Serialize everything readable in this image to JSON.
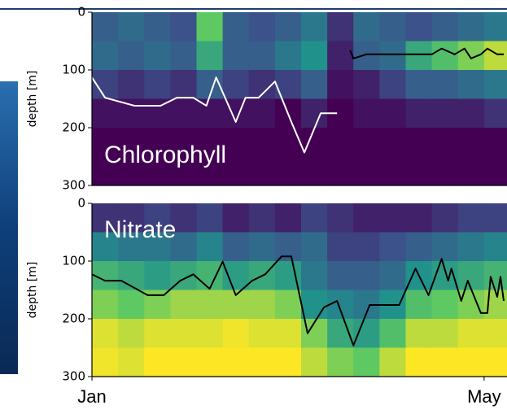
{
  "chart_data": [
    {
      "type": "heatmap",
      "title": "Chlorophyll",
      "ylabel": "depth [m]",
      "xlim": [
        0,
        127
      ],
      "ylim": [
        0,
        300
      ],
      "y_inverted": true,
      "yticks": [
        0,
        100,
        200,
        300
      ],
      "x_bins": [
        0,
        8,
        16,
        24,
        32,
        40,
        48,
        56,
        64,
        72,
        80,
        88,
        96,
        104,
        112,
        120,
        127
      ],
      "y_bins": [
        0,
        50,
        100,
        150,
        200,
        250,
        300
      ],
      "z": [
        [
          0.3,
          0.35,
          0.2,
          0.05,
          0,
          0
        ],
        [
          0.35,
          0.3,
          0.15,
          0.05,
          0,
          0
        ],
        [
          0.3,
          0.35,
          0.2,
          0.05,
          0,
          0
        ],
        [
          0.25,
          0.3,
          0.15,
          0.05,
          0,
          0
        ],
        [
          0.75,
          0.6,
          0.3,
          0.05,
          0,
          0
        ],
        [
          0.3,
          0.3,
          0.2,
          0.05,
          0,
          0
        ],
        [
          0.25,
          0.3,
          0.15,
          0.05,
          0,
          0
        ],
        [
          0.3,
          0.4,
          0.2,
          0,
          0,
          0
        ],
        [
          0.4,
          0.5,
          0.3,
          0.1,
          0,
          0
        ],
        [
          0.15,
          0.1,
          0.05,
          0,
          0,
          0
        ],
        [
          0.35,
          0.3,
          0.1,
          0.05,
          0,
          0
        ],
        [
          0.3,
          0.35,
          0.2,
          0.05,
          0,
          0
        ],
        [
          0.25,
          0.6,
          0.3,
          0.1,
          0,
          0
        ],
        [
          0.3,
          0.7,
          0.3,
          0.1,
          0,
          0
        ],
        [
          0.35,
          0.8,
          0.35,
          0.1,
          0,
          0
        ],
        [
          0.4,
          0.9,
          0.4,
          0.15,
          0,
          0
        ]
      ],
      "lines": [
        {
          "color": "#ffffff",
          "x": [
            0,
            4,
            13,
            21,
            26,
            31,
            35,
            38,
            44,
            47,
            51,
            56,
            61,
            65,
            70,
            75
          ],
          "values": [
            113,
            148,
            162,
            162,
            148,
            148,
            162,
            113,
            190,
            148,
            148,
            120,
            190,
            243,
            175,
            175
          ]
        },
        {
          "color": "#000000",
          "x": [
            79,
            80,
            84,
            94,
            104,
            107,
            111,
            114,
            116,
            119,
            121,
            124,
            126
          ],
          "values": [
            66,
            80,
            73,
            73,
            73,
            63,
            73,
            63,
            80,
            73,
            63,
            73,
            73
          ]
        }
      ]
    },
    {
      "type": "heatmap",
      "title": "Nitrate",
      "ylabel": "depth [m]",
      "xlim": [
        0,
        127
      ],
      "ylim": [
        0,
        300
      ],
      "y_inverted": true,
      "yticks": [
        0,
        100,
        200,
        300
      ],
      "xticks": [
        {
          "value": 0,
          "label": "Jan"
        },
        {
          "value": 120,
          "label": "May"
        }
      ],
      "x_bins": [
        0,
        8,
        16,
        24,
        32,
        40,
        48,
        56,
        64,
        72,
        80,
        88,
        96,
        104,
        112,
        120,
        127
      ],
      "y_bins": [
        0,
        50,
        100,
        150,
        200,
        250,
        300
      ],
      "z": [
        [
          0.15,
          0.45,
          0.65,
          0.8,
          0.95,
          0.98
        ],
        [
          0.15,
          0.4,
          0.6,
          0.75,
          0.9,
          0.95
        ],
        [
          0.2,
          0.4,
          0.55,
          0.8,
          0.95,
          1
        ],
        [
          0.15,
          0.35,
          0.6,
          0.85,
          0.95,
          1
        ],
        [
          0.2,
          0.45,
          0.65,
          0.85,
          0.95,
          1
        ],
        [
          0.1,
          0.3,
          0.55,
          0.85,
          0.98,
          1
        ],
        [
          0.15,
          0.35,
          0.6,
          0.85,
          0.95,
          1
        ],
        [
          0.1,
          0.3,
          0.55,
          0.8,
          0.95,
          1
        ],
        [
          0.2,
          0.35,
          0.4,
          0.5,
          0.8,
          0.9
        ],
        [
          0.15,
          0.2,
          0.3,
          0.45,
          0.6,
          0.8
        ],
        [
          0.1,
          0.2,
          0.3,
          0.4,
          0.55,
          0.75
        ],
        [
          0.1,
          0.25,
          0.35,
          0.5,
          0.7,
          0.9
        ],
        [
          0.1,
          0.3,
          0.5,
          0.7,
          0.9,
          1
        ],
        [
          0.15,
          0.35,
          0.55,
          0.75,
          0.9,
          1
        ],
        [
          0.2,
          0.4,
          0.6,
          0.8,
          0.95,
          1
        ],
        [
          0.2,
          0.45,
          0.65,
          0.85,
          0.95,
          1
        ]
      ],
      "lines": [
        {
          "color": "#000000",
          "x": [
            0,
            4,
            9,
            17,
            22,
            27,
            31,
            36,
            40,
            44,
            49,
            53,
            58,
            61,
            66,
            71,
            75,
            80,
            85,
            94,
            99,
            103,
            107,
            109,
            110,
            113,
            115,
            119,
            121,
            122,
            124,
            125,
            126
          ],
          "values": [
            123,
            134,
            134,
            159,
            159,
            134,
            123,
            148,
            101,
            159,
            134,
            123,
            92,
            92,
            225,
            180,
            169,
            246,
            176,
            176,
            113,
            159,
            96,
            134,
            113,
            169,
            134,
            190,
            190,
            127,
            162,
            127,
            169
          ]
        }
      ]
    }
  ]
}
